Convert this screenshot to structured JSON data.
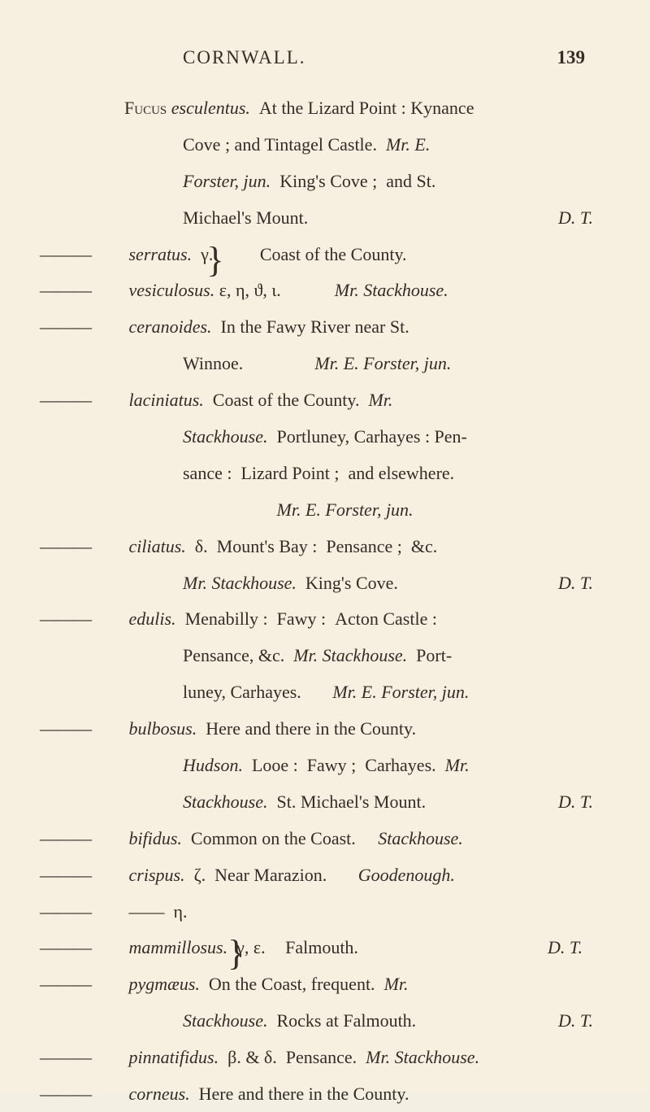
{
  "header": {
    "running_title": "CORNWALL.",
    "page_number": "139"
  },
  "lines": [
    {
      "dash": "",
      "html": "F<span style='font-variant:small-caps'>ucus</span> <em>esculentus.</em>&nbsp;&nbsp;At the Lizard Point : Kynance"
    },
    {
      "cont": true,
      "html": "Cove ; and Tintagel Castle.&nbsp;&nbsp;<em>Mr. E.</em>"
    },
    {
      "cont": true,
      "html": "<em>Forster, jun.</em>&nbsp;&nbsp;King's Cove ;&nbsp;&nbsp;and St."
    },
    {
      "cont": true,
      "html": "Michael's Mount.<span class='right-note'>D. T.</span>"
    },
    {
      "dash": "———",
      "html": " <em>serratus.</em>&nbsp;&nbsp;γ.&nbsp;&nbsp;&nbsp;&nbsp;&nbsp;&nbsp;&nbsp;&nbsp;<span class='brace'>}</span> Coast of the County."
    },
    {
      "dash": "———",
      "html": " <em>vesiculosus.</em> ε, η, ϑ, ι.&nbsp;&nbsp;&nbsp;&nbsp;&nbsp;&nbsp;&nbsp;&nbsp;&nbsp;&nbsp;&nbsp;&nbsp;<em>Mr. Stackhouse.</em>"
    },
    {
      "dash": "———",
      "html": " <em>ceranoides.</em>&nbsp;&nbsp;In the Fawy River near St."
    },
    {
      "cont": true,
      "html": "Winnoe.&nbsp;&nbsp;&nbsp;&nbsp;&nbsp;&nbsp;&nbsp;&nbsp;&nbsp;&nbsp;&nbsp;&nbsp;&nbsp;&nbsp;&nbsp;&nbsp;<em>Mr. E. Forster, jun.</em>"
    },
    {
      "dash": "———",
      "html": " <em>laciniatus.</em>&nbsp;&nbsp;Coast of the County.&nbsp;&nbsp;<em>Mr.</em>"
    },
    {
      "cont": true,
      "html": "<em>Stackhouse.</em>&nbsp;&nbsp;Portluney, Carhayes : Pen-"
    },
    {
      "cont": true,
      "html": "sance :&nbsp;&nbsp;Lizard Point ;&nbsp;&nbsp;and elsewhere."
    },
    {
      "cont": true,
      "html": "&nbsp;&nbsp;&nbsp;&nbsp;&nbsp;&nbsp;&nbsp;&nbsp;&nbsp;&nbsp;&nbsp;&nbsp;&nbsp;&nbsp;&nbsp;&nbsp;&nbsp;&nbsp;&nbsp;&nbsp;&nbsp;<em>Mr. E. Forster, jun.</em>"
    },
    {
      "dash": "———",
      "html": " <em>ciliatus.</em>&nbsp;&nbsp;δ.&nbsp;&nbsp;Mount's Bay :&nbsp;&nbsp;Pensance ;&nbsp;&nbsp;&c."
    },
    {
      "cont": true,
      "html": "<em>Mr. Stackhouse.</em>&nbsp;&nbsp;King's Cove.<span class='right-note'>D. T.</span>"
    },
    {
      "dash": "———",
      "html": " <em>edulis.</em>&nbsp;&nbsp;Menabilly :&nbsp;&nbsp;Fawy :&nbsp;&nbsp;Acton Castle :"
    },
    {
      "cont": true,
      "html": "Pensance, &c.&nbsp;&nbsp;<em>Mr. Stackhouse.</em>&nbsp;&nbsp;Port-"
    },
    {
      "cont": true,
      "html": "luney, Carhayes.&nbsp;&nbsp;&nbsp;&nbsp;&nbsp;&nbsp;&nbsp;<em>Mr. E. Forster, jun.</em>"
    },
    {
      "dash": "———",
      "html": " <em>bulbosus.</em>&nbsp;&nbsp;Here and there in the County."
    },
    {
      "cont": true,
      "html": "<em>Hudson.</em>&nbsp;&nbsp;Looe :&nbsp;&nbsp;Fawy ;&nbsp;&nbsp;Carhayes.&nbsp;&nbsp;<em>Mr.</em>"
    },
    {
      "cont": true,
      "html": "<em>Stackhouse.</em>&nbsp;&nbsp;St. Michael's Mount.<span class='right-note'>D. T.</span>"
    },
    {
      "dash": "———",
      "html": " <em>bifidus.</em>&nbsp;&nbsp;Common on the Coast.&nbsp;&nbsp;&nbsp;&nbsp;&nbsp;<em>Stackhouse.</em>"
    },
    {
      "dash": "———",
      "html": " <em>crispus.</em>&nbsp;&nbsp;ζ.&nbsp;&nbsp;Near Marazion.&nbsp;&nbsp;&nbsp;&nbsp;&nbsp;&nbsp;&nbsp;<em>Goodenough.</em>"
    },
    {
      "dash": "———",
      "html": " ——&nbsp;&nbsp;η."
    },
    {
      "dash": "———",
      "html": " <em>mammillosus.</em>&nbsp;&nbsp;γ, ε.&nbsp;<span class='brace'>}</span>&nbsp;&nbsp;Falmouth.<span class='right-note'>D. T.</span>"
    },
    {
      "dash": "———",
      "html": " <em>pygmæus.</em>&nbsp;&nbsp;On the Coast, frequent.&nbsp;&nbsp;<em>Mr.</em>"
    },
    {
      "cont": true,
      "html": "<em>Stackhouse.</em>&nbsp;&nbsp;Rocks at Falmouth.<span class='right-note'>D. T.</span>"
    },
    {
      "dash": "———",
      "html": " <em>pinnatifidus.</em>&nbsp;&nbsp;β. & δ.&nbsp;&nbsp;Pensance.&nbsp;&nbsp;<em>Mr. Stackhouse.</em>"
    },
    {
      "dash": "———",
      "html": " <em>corneus.</em>&nbsp;&nbsp;Here and there in the County."
    }
  ]
}
